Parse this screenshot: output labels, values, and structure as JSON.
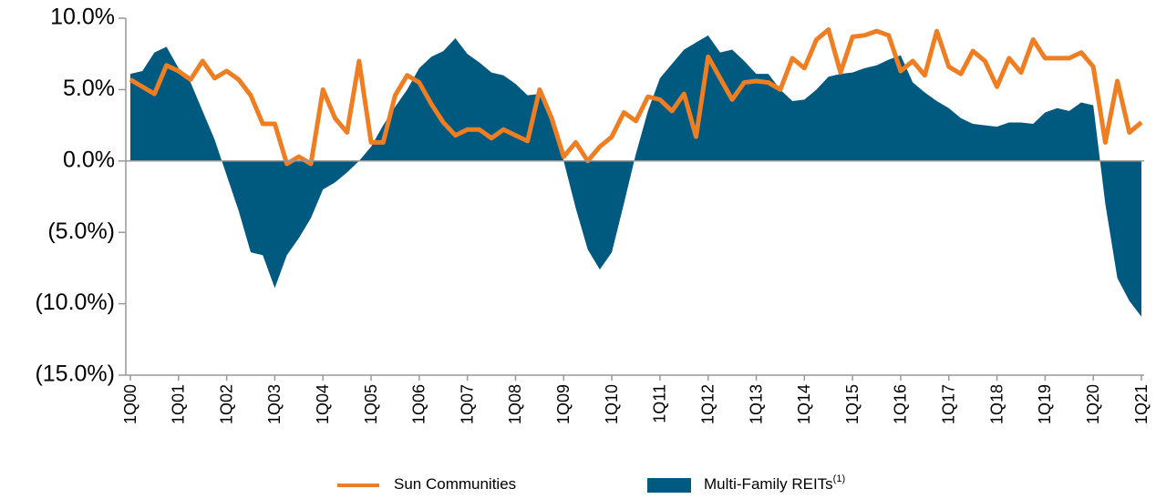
{
  "chart_data": {
    "type": "area_line",
    "categories": [
      "1Q00",
      null,
      null,
      null,
      "1Q01",
      null,
      null,
      null,
      "1Q02",
      null,
      null,
      null,
      "1Q03",
      null,
      null,
      null,
      "1Q04",
      null,
      null,
      null,
      "1Q05",
      null,
      null,
      null,
      "1Q06",
      null,
      null,
      null,
      "1Q07",
      null,
      null,
      null,
      "1Q08",
      null,
      null,
      null,
      "1Q09",
      null,
      null,
      null,
      "1Q10",
      null,
      null,
      null,
      "1Q11",
      null,
      null,
      null,
      "1Q12",
      null,
      null,
      null,
      "1Q13",
      null,
      null,
      null,
      "1Q14",
      null,
      null,
      null,
      "1Q15",
      null,
      null,
      null,
      "1Q16",
      null,
      null,
      null,
      "1Q17",
      null,
      null,
      null,
      "1Q18",
      null,
      null,
      null,
      "1Q19",
      null,
      null,
      null,
      "1Q20",
      null,
      null,
      null,
      "1Q21"
    ],
    "series": [
      {
        "name": "Sun Communities",
        "kind": "line",
        "color": "#ef7d22",
        "values": [
          5.7,
          5.2,
          4.7,
          6.7,
          6.3,
          5.7,
          7.0,
          5.8,
          6.3,
          5.7,
          4.6,
          2.6,
          2.6,
          -0.2,
          0.3,
          -0.2,
          5.0,
          3.0,
          2.0,
          7.0,
          1.3,
          1.3,
          4.6,
          6.0,
          5.5,
          4.0,
          2.7,
          1.8,
          2.2,
          2.2,
          1.6,
          2.2,
          1.8,
          1.4,
          5.0,
          3.0,
          0.3,
          1.3,
          0.0,
          1.0,
          1.7,
          3.4,
          2.8,
          4.5,
          4.3,
          3.5,
          4.7,
          1.7,
          7.3,
          5.8,
          4.3,
          5.5,
          5.6,
          5.5,
          5.0,
          7.2,
          6.5,
          8.5,
          9.2,
          6.2,
          8.7,
          8.8,
          9.1,
          8.8,
          6.3,
          7.0,
          6.0,
          9.1,
          6.6,
          6.1,
          7.7,
          7.0,
          5.2,
          7.2,
          6.2,
          8.5,
          7.2,
          7.2,
          7.2,
          7.6,
          6.6,
          1.3,
          5.6,
          2.0,
          2.7
        ]
      },
      {
        "name": "Multi-Family REITs",
        "legend_note": "(1)",
        "kind": "area",
        "color": "#005a80",
        "values": [
          6.1,
          6.3,
          7.6,
          8.0,
          6.5,
          5.5,
          3.5,
          1.5,
          -1.0,
          -3.5,
          -6.4,
          -6.6,
          -8.9,
          -6.6,
          -5.4,
          -4.0,
          -2.0,
          -1.5,
          -0.8,
          0.0,
          1.0,
          2.5,
          3.8,
          5.0,
          6.5,
          7.3,
          7.7,
          8.6,
          7.5,
          6.9,
          6.2,
          6.0,
          5.4,
          4.6,
          4.7,
          3.0,
          0.0,
          -3.3,
          -6.2,
          -7.6,
          -6.4,
          -3.0,
          0.5,
          3.5,
          5.8,
          6.8,
          7.8,
          8.3,
          8.8,
          7.6,
          7.8,
          7.0,
          6.1,
          6.1,
          5.0,
          4.2,
          4.3,
          5.0,
          5.9,
          6.1,
          6.2,
          6.5,
          6.7,
          7.1,
          7.4,
          5.5,
          4.8,
          4.2,
          3.7,
          3.0,
          2.6,
          2.5,
          2.4,
          2.7,
          2.7,
          2.6,
          3.4,
          3.7,
          3.5,
          4.1,
          3.9,
          -3.0,
          -8.2,
          -9.8,
          -10.9
        ]
      }
    ],
    "ylim": [
      -15,
      10
    ],
    "yticks": [
      {
        "value": -15,
        "label": "(15.0%)"
      },
      {
        "value": -10,
        "label": "(10.0%)"
      },
      {
        "value": -5,
        "label": "(5.0%)"
      },
      {
        "value": 0,
        "label": "0.0%"
      },
      {
        "value": 5,
        "label": "5.0%"
      },
      {
        "value": 10,
        "label": "10.0%"
      }
    ]
  }
}
